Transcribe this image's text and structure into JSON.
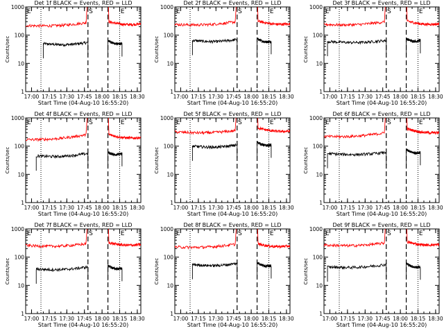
{
  "chart_data": [
    {
      "type": "line",
      "title": "Det 1f BLACK = Events, RED = LLD",
      "xlabel": "Start Time (04-Aug-10 16:55:20)",
      "ylabel": "Counts/sec",
      "yscale": "log",
      "ylim": [
        1,
        1000
      ],
      "x_ticks": [
        "17:00",
        "17:15",
        "17:30",
        "17:45",
        "18:00",
        "18:15",
        "18:30"
      ],
      "y_ticks": [
        "1",
        "10",
        "100",
        "1000"
      ],
      "markers": [
        "E",
        "S",
        "E"
      ],
      "series": [
        {
          "color": "#000000",
          "segments": [
            {
              "start": "17:10",
              "end": "17:48",
              "level": 50,
              "end_level": 55
            },
            {
              "start": "18:05",
              "end": "18:17",
              "level": 65,
              "end_level": 50
            }
          ]
        },
        {
          "color": "#ff0000",
          "segments": [
            {
              "start": "16:55",
              "end": "17:48",
              "level": 220,
              "end_level": 280
            },
            {
              "start": "18:05",
              "end": "18:33",
              "level": 300,
              "end_level": 250
            }
          ]
        }
      ]
    },
    {
      "type": "line",
      "title": "Det 2f BLACK = Events, RED = LLD",
      "xlabel": "Start Time (04-Aug-10 16:55:20)",
      "ylabel": "Counts/sec",
      "yscale": "log",
      "ylim": [
        1,
        1000
      ],
      "x_ticks": [
        "17:00",
        "17:15",
        "17:30",
        "17:45",
        "18:00",
        "18:15",
        "18:30"
      ],
      "y_ticks": [
        "1",
        "10",
        "100",
        "1000"
      ],
      "markers": [
        "E",
        "S",
        "E"
      ],
      "series": [
        {
          "color": "#000000",
          "segments": [
            {
              "start": "17:10",
              "end": "17:48",
              "level": 65,
              "end_level": 70
            },
            {
              "start": "18:05",
              "end": "18:17",
              "level": 75,
              "end_level": 60
            }
          ]
        },
        {
          "color": "#ff0000",
          "segments": [
            {
              "start": "16:55",
              "end": "17:48",
              "level": 240,
              "end_level": 300
            },
            {
              "start": "18:05",
              "end": "18:33",
              "level": 320,
              "end_level": 250
            }
          ]
        }
      ]
    },
    {
      "type": "line",
      "title": "Det 3f BLACK = Events, RED = LLD",
      "xlabel": "Start Time (04-Aug-10 16:55:20)",
      "ylabel": "Counts/sec",
      "yscale": "log",
      "ylim": [
        1,
        1000
      ],
      "x_ticks": [
        "17:00",
        "17:15",
        "17:30",
        "17:45",
        "18:00",
        "18:15",
        "18:30"
      ],
      "y_ticks": [
        "1",
        "10",
        "100",
        "1000"
      ],
      "markers": [
        "E",
        "S",
        "E"
      ],
      "series": [
        {
          "color": "#000000",
          "segments": [
            {
              "start": "16:58",
              "end": "17:48",
              "level": 60,
              "end_level": 65
            },
            {
              "start": "18:05",
              "end": "18:17",
              "level": 75,
              "end_level": 65
            }
          ]
        },
        {
          "color": "#ff0000",
          "segments": [
            {
              "start": "16:55",
              "end": "17:48",
              "level": 240,
              "end_level": 300
            },
            {
              "start": "18:05",
              "end": "18:33",
              "level": 320,
              "end_level": 250
            }
          ]
        }
      ]
    },
    {
      "type": "line",
      "title": "Det 4f BLACK = Events, RED = LLD",
      "xlabel": "Start Time (04-Aug-10 16:55:20)",
      "ylabel": "Counts/sec",
      "yscale": "log",
      "ylim": [
        1,
        1000
      ],
      "x_ticks": [
        "17:00",
        "17:15",
        "17:30",
        "17:45",
        "18:00",
        "18:15",
        "18:30"
      ],
      "y_ticks": [
        "1",
        "10",
        "100",
        "1000"
      ],
      "markers": [
        "E",
        "S",
        "E"
      ],
      "series": [
        {
          "color": "#000000",
          "segments": [
            {
              "start": "17:04",
              "end": "17:48",
              "level": 45,
              "end_level": 55
            },
            {
              "start": "18:05",
              "end": "18:17",
              "level": 60,
              "end_level": 55
            }
          ]
        },
        {
          "color": "#ff0000",
          "segments": [
            {
              "start": "16:55",
              "end": "17:48",
              "level": 170,
              "end_level": 260
            },
            {
              "start": "18:05",
              "end": "18:33",
              "level": 260,
              "end_level": 200
            }
          ]
        }
      ]
    },
    {
      "type": "line",
      "title": "Det 5f BLACK = Events, RED = LLD",
      "xlabel": "Start Time (04-Aug-10 16:55:20)",
      "ylabel": "Counts/sec",
      "yscale": "log",
      "ylim": [
        1,
        1000
      ],
      "x_ticks": [
        "17:00",
        "17:15",
        "17:30",
        "17:45",
        "18:00",
        "18:15",
        "18:30"
      ],
      "y_ticks": [
        "1",
        "10",
        "100",
        "1000"
      ],
      "markers": [
        "E",
        "S",
        "E"
      ],
      "series": [
        {
          "color": "#000000",
          "segments": [
            {
              "start": "17:10",
              "end": "17:48",
              "level": 100,
              "end_level": 110
            },
            {
              "start": "18:05",
              "end": "18:17",
              "level": 140,
              "end_level": 110
            }
          ]
        },
        {
          "color": "#ff0000",
          "segments": [
            {
              "start": "16:55",
              "end": "17:48",
              "level": 320,
              "end_level": 360
            },
            {
              "start": "18:05",
              "end": "18:33",
              "level": 450,
              "end_level": 340
            }
          ]
        }
      ]
    },
    {
      "type": "line",
      "title": "Det 6f BLACK = Events, RED = LLD",
      "xlabel": "Start Time (04-Aug-10 16:55:20)",
      "ylabel": "Counts/sec",
      "yscale": "log",
      "ylim": [
        1,
        1000
      ],
      "x_ticks": [
        "17:00",
        "17:15",
        "17:30",
        "17:45",
        "18:00",
        "18:15",
        "18:30"
      ],
      "y_ticks": [
        "1",
        "10",
        "100",
        "1000"
      ],
      "markers": [
        "E",
        "S",
        "E"
      ],
      "series": [
        {
          "color": "#000000",
          "segments": [
            {
              "start": "16:58",
              "end": "17:48",
              "level": 55,
              "end_level": 60
            },
            {
              "start": "18:05",
              "end": "18:17",
              "level": 75,
              "end_level": 60
            }
          ]
        },
        {
          "color": "#ff0000",
          "segments": [
            {
              "start": "16:55",
              "end": "17:48",
              "level": 220,
              "end_level": 300
            },
            {
              "start": "18:05",
              "end": "18:33",
              "level": 420,
              "end_level": 300
            }
          ]
        }
      ]
    },
    {
      "type": "line",
      "title": "Det 7f BLACK = Events, RED = LLD",
      "xlabel": "Start Time (04-Aug-10 16:55:20)",
      "ylabel": "Counts/sec",
      "yscale": "log",
      "ylim": [
        1,
        1000
      ],
      "x_ticks": [
        "17:00",
        "17:15",
        "17:30",
        "17:45",
        "18:00",
        "18:15",
        "18:30"
      ],
      "y_ticks": [
        "1",
        "10",
        "100",
        "1000"
      ],
      "markers": [
        "E",
        "S",
        "E"
      ],
      "series": [
        {
          "color": "#000000",
          "segments": [
            {
              "start": "17:04",
              "end": "17:48",
              "level": 38,
              "end_level": 45
            },
            {
              "start": "18:05",
              "end": "18:17",
              "level": 50,
              "end_level": 40
            }
          ]
        },
        {
          "color": "#ff0000",
          "segments": [
            {
              "start": "16:55",
              "end": "17:48",
              "level": 260,
              "end_level": 300
            },
            {
              "start": "18:05",
              "end": "18:33",
              "level": 330,
              "end_level": 280
            }
          ]
        }
      ]
    },
    {
      "type": "line",
      "title": "Det 8f BLACK = Events, RED = LLD",
      "xlabel": "Start Time (04-Aug-10 16:55:20)",
      "ylabel": "Counts/sec",
      "yscale": "log",
      "ylim": [
        1,
        1000
      ],
      "x_ticks": [
        "17:00",
        "17:15",
        "17:30",
        "17:45",
        "18:00",
        "18:15",
        "18:30"
      ],
      "y_ticks": [
        "1",
        "10",
        "100",
        "1000"
      ],
      "markers": [
        "E",
        "S",
        "E"
      ],
      "series": [
        {
          "color": "#000000",
          "segments": [
            {
              "start": "17:10",
              "end": "17:48",
              "level": 55,
              "end_level": 60
            },
            {
              "start": "18:05",
              "end": "18:17",
              "level": 65,
              "end_level": 50
            }
          ]
        },
        {
          "color": "#ff0000",
          "segments": [
            {
              "start": "16:55",
              "end": "17:48",
              "level": 230,
              "end_level": 290
            },
            {
              "start": "18:05",
              "end": "18:33",
              "level": 300,
              "end_level": 250
            }
          ]
        }
      ]
    },
    {
      "type": "line",
      "title": "Det 9f BLACK = Events, RED = LLD",
      "xlabel": "Start Time (04-Aug-10 16:55:20)",
      "ylabel": "Counts/sec",
      "yscale": "log",
      "ylim": [
        1,
        1000
      ],
      "x_ticks": [
        "17:00",
        "17:15",
        "17:30",
        "17:45",
        "18:00",
        "18:15",
        "18:30"
      ],
      "y_ticks": [
        "1",
        "10",
        "100",
        "1000"
      ],
      "markers": [
        "E",
        "S",
        "E"
      ],
      "series": [
        {
          "color": "#000000",
          "segments": [
            {
              "start": "16:58",
              "end": "17:48",
              "level": 45,
              "end_level": 55
            },
            {
              "start": "18:05",
              "end": "18:17",
              "level": 60,
              "end_level": 45
            }
          ]
        },
        {
          "color": "#ff0000",
          "segments": [
            {
              "start": "16:55",
              "end": "17:48",
              "level": 270,
              "end_level": 320
            },
            {
              "start": "18:05",
              "end": "18:33",
              "level": 350,
              "end_level": 280
            }
          ]
        }
      ]
    }
  ],
  "event_lines": {
    "dotted": [
      "17:08",
      "18:15"
    ],
    "dashed": [
      "17:48",
      "18:05"
    ]
  },
  "x_range": [
    "16:55",
    "18:33"
  ]
}
